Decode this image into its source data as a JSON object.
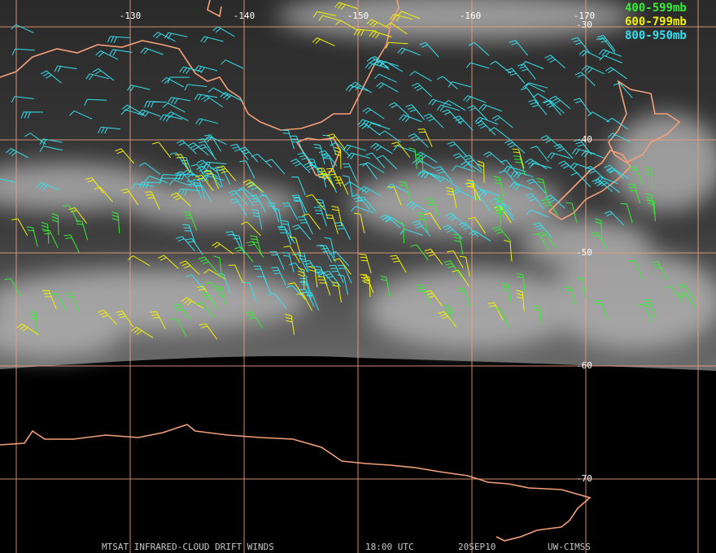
{
  "longitude_labels": [
    "-130",
    "-140",
    "-150",
    "-160",
    "-170"
  ],
  "latitude_labels": [
    "-30",
    "-40",
    "-50",
    "-60",
    "-70"
  ],
  "legend": [
    {
      "label": "400-599mb",
      "color": "#33ee33"
    },
    {
      "label": "600-799mb",
      "color": "#f2f200"
    },
    {
      "label": "800-950mb",
      "color": "#33e0ee"
    }
  ],
  "footer": {
    "product": "MTSAT INFRARED-CLOUD DRIFT WINDS",
    "time": "18:00 UTC",
    "date": "20SEP10",
    "source": "UW-CIMSS"
  }
}
